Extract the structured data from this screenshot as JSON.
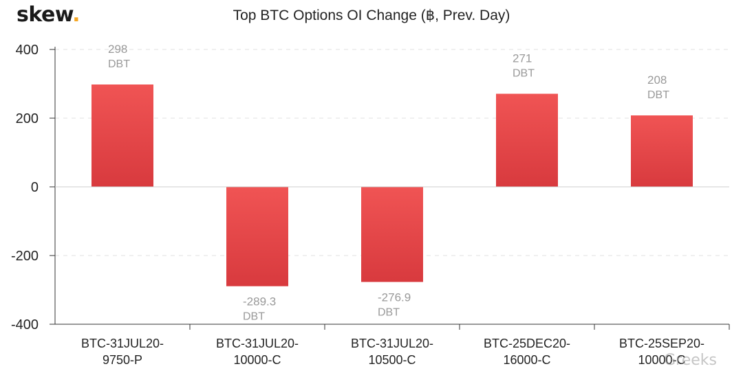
{
  "logo": {
    "text": "skew",
    "dot": "."
  },
  "watermark": "Greeks",
  "chart_data": {
    "type": "bar",
    "title": "Top BTC Options OI Change (฿, Prev. Day)",
    "categories": [
      [
        "BTC-31JUL20-",
        "9750-P"
      ],
      [
        "BTC-31JUL20-",
        "10000-C"
      ],
      [
        "BTC-31JUL20-",
        "10500-C"
      ],
      [
        "BTC-25DEC20-",
        "16000-C"
      ],
      [
        "BTC-25SEP20-",
        "10000-C"
      ]
    ],
    "values": [
      298,
      -289.3,
      -276.9,
      271,
      208
    ],
    "data_labels": [
      "298",
      "-289.3",
      "-276.9",
      "271",
      "208"
    ],
    "unit_label": "DBT",
    "yticks": [
      "400",
      "200",
      "0",
      "-200",
      "-400"
    ],
    "ylim": [
      -400,
      400
    ],
    "grid": true,
    "colors": {
      "bar_top": "#f05454",
      "bar_bottom": "#d83a3e",
      "grid": "#e2e2e2",
      "axis": "#333333",
      "label": "#999999"
    }
  }
}
